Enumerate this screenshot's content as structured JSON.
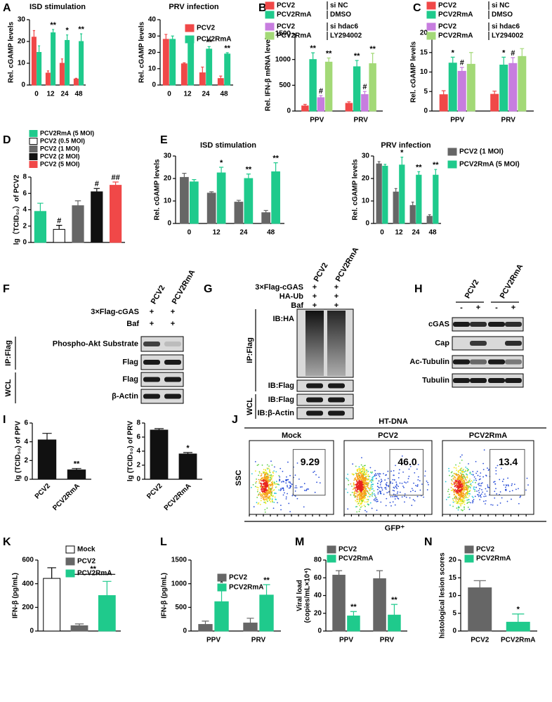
{
  "chart_data": [
    {
      "type": "bar",
      "panel": "A",
      "title": "ISD stimulation",
      "ylabel": "Rel. cGAMP levels",
      "categories": [
        "0",
        "12",
        "24",
        "48"
      ],
      "ylim": [
        0,
        30
      ],
      "yticks": [
        0,
        10,
        20,
        30
      ],
      "series": [
        {
          "color": "#f04848",
          "values": [
            22,
            5.5,
            10,
            2.8
          ],
          "errors": [
            3,
            1,
            2,
            0.3
          ]
        },
        {
          "color": "#1fca8c",
          "values": [
            15,
            24,
            20.5,
            20
          ],
          "errors": [
            3,
            1.5,
            2.5,
            3.5
          ],
          "annotations": [
            null,
            "**",
            "*",
            "**"
          ]
        }
      ]
    },
    {
      "type": "bar",
      "title": "PRV infection",
      "ylabel": "Rel. cGAMP levels",
      "categories": [
        "0",
        "12",
        "24",
        "48"
      ],
      "ylim": [
        0,
        40
      ],
      "yticks": [
        0,
        10,
        20,
        30,
        40
      ],
      "legend": true,
      "series": [
        {
          "name": "PCV2",
          "color": "#f04848",
          "values": [
            28,
            13,
            7.5,
            4
          ],
          "errors": [
            3,
            0.6,
            3.5,
            1.5
          ]
        },
        {
          "name": "PCV2RmA",
          "color": "#1fca8c",
          "values": [
            28,
            28,
            22,
            19
          ],
          "errors": [
            2,
            2,
            1.5,
            0.8
          ],
          "annotations": [
            null,
            "**",
            "**",
            "**"
          ]
        }
      ]
    },
    {
      "type": "bar",
      "panel": "B",
      "ylabel": "Rel. IFN-β mRNA levels",
      "categories": [
        "PPV",
        "PRV"
      ],
      "ylim": [
        0,
        1500
      ],
      "yticks": [
        0,
        500,
        1000,
        1500
      ],
      "legend": true,
      "series": [
        {
          "name": "PCV2",
          "note": "si NC",
          "color": "#f04848",
          "values": [
            100,
            150
          ],
          "errors": [
            30,
            30
          ]
        },
        {
          "name": "PCV2RmA",
          "note": "DMSO",
          "color": "#1fca8c",
          "values": [
            1000,
            860
          ],
          "errors": [
            130,
            120
          ],
          "annotations": [
            "**",
            "**"
          ]
        },
        {
          "name": "PCV2",
          "note": "si hdac6",
          "color": "#c77ddf",
          "values": [
            260,
            320
          ],
          "errors": [
            40,
            60
          ],
          "annotations": [
            "#",
            "#"
          ]
        },
        {
          "name": "PCV2RmA",
          "note": "LY294002",
          "color": "#a3d977",
          "values": [
            950,
            920
          ],
          "errors": [
            80,
            200
          ],
          "annotations": [
            "**",
            "**"
          ]
        }
      ]
    },
    {
      "type": "bar",
      "panel": "C",
      "ylabel": "Rel. cGAMP levels",
      "categories": [
        "PPV",
        "PRV"
      ],
      "ylim": [
        0,
        20
      ],
      "yticks": [
        0,
        5,
        10,
        15,
        20
      ],
      "legend": true,
      "series": [
        {
          "name": "PCV2",
          "note": "si NC",
          "color": "#f04848",
          "values": [
            4.2,
            4.3
          ],
          "errors": [
            1,
            0.8
          ]
        },
        {
          "name": "PCV2RmA",
          "note": "DMSO",
          "color": "#1fca8c",
          "values": [
            12.3,
            11.8
          ],
          "errors": [
            1.5,
            2
          ],
          "annotations": [
            "*",
            "*"
          ]
        },
        {
          "name": "PCV2",
          "note": "si hdac6",
          "color": "#c77ddf",
          "values": [
            10.2,
            12.2
          ],
          "errors": [
            1,
            1.5
          ],
          "annotations": [
            "#",
            "#"
          ]
        },
        {
          "name": "PCV2RmA",
          "note": "LY294002",
          "color": "#a3d977",
          "values": [
            12,
            14
          ],
          "errors": [
            3,
            2
          ]
        }
      ]
    },
    {
      "type": "bar",
      "panel": "D",
      "ylabel": "lg（TCID₅₀）of PCV2",
      "categories": [
        "PCV2RmA (5 MOI)",
        "PCV2 (0.5 MOI)",
        "PCV2 (1 MOI)",
        "PCV2 (2 MOI)",
        "PCV2 (5 MOI)"
      ],
      "xlabels": false,
      "legend": true,
      "values": [
        3.8,
        1.6,
        4.5,
        6.2,
        7.0
      ],
      "errors": [
        1,
        0.5,
        0.6,
        0.4,
        0.4
      ],
      "annotations": [
        null,
        "#",
        null,
        "#",
        "##"
      ],
      "colors": [
        "#1fca8c",
        "#ffffff",
        "#666666",
        "#111111",
        "#f04848"
      ],
      "ylim": [
        0,
        8
      ],
      "yticks": [
        0,
        2,
        4,
        6,
        8
      ]
    },
    {
      "type": "bar",
      "panel": "E",
      "title": "ISD stimulation",
      "ylabel": "Rel. cGAMP levels",
      "categories": [
        "0",
        "12",
        "24",
        "48"
      ],
      "ylim": [
        0,
        30
      ],
      "yticks": [
        0,
        10,
        20,
        30
      ],
      "series": [
        {
          "color": "#666666",
          "values": [
            20.5,
            13.5,
            9.5,
            4.8
          ],
          "errors": [
            1.8,
            0.6,
            0.8,
            1
          ]
        },
        {
          "color": "#1fca8c",
          "values": [
            18.5,
            22.5,
            20,
            23
          ],
          "errors": [
            1,
            2.5,
            2,
            4
          ],
          "annotations": [
            null,
            "*",
            "**",
            "**"
          ]
        }
      ]
    },
    {
      "type": "bar",
      "title": "PRV infection",
      "ylabel": "Rel. cGAMP levels",
      "categories": [
        "0",
        "12",
        "24",
        "48"
      ],
      "ylim": [
        0,
        30
      ],
      "yticks": [
        0,
        10,
        20,
        30
      ],
      "legend": true,
      "series": [
        {
          "name": "PCV2 (1 MOI)",
          "color": "#666666",
          "values": [
            26.5,
            14,
            8,
            3.2
          ],
          "errors": [
            1,
            1.5,
            1.5,
            0.7
          ]
        },
        {
          "name": "PCV2RmA (5 MOI)",
          "color": "#1fca8c",
          "values": [
            25.5,
            26,
            21.5,
            21.5
          ],
          "errors": [
            0.8,
            3.5,
            1.5,
            2.5
          ],
          "annotations": [
            null,
            "*",
            "**",
            "**"
          ]
        }
      ]
    },
    {
      "type": "bar",
      "panel": "I",
      "ylabel": "lg (TCID₅₀) of PPV",
      "categories": [
        "PCV2",
        "PCV2RmA"
      ],
      "xlabel_rotation": 45,
      "values": [
        4.2,
        1.0
      ],
      "errors": [
        0.7,
        0.15
      ],
      "annotations": [
        null,
        "**"
      ],
      "color": "#111111",
      "ylim": [
        0,
        6
      ],
      "yticks": [
        0,
        2,
        4,
        6
      ]
    },
    {
      "type": "bar",
      "ylabel": "lg (TCID₅₀) of PRV",
      "categories": [
        "PCV2",
        "PCV2RmA"
      ],
      "xlabel_rotation": 45,
      "values": [
        7.0,
        3.6
      ],
      "errors": [
        0.2,
        0.2
      ],
      "annotations": [
        null,
        "*"
      ],
      "color": "#111111",
      "ylim": [
        0,
        8
      ],
      "yticks": [
        0,
        2,
        4,
        6,
        8
      ]
    },
    {
      "type": "bar",
      "panel": "K",
      "ylabel": "IFN-β (pg/mL)",
      "categories": [
        "Mock",
        "PCV2",
        "PCV2RmA"
      ],
      "xlabels": false,
      "legend": true,
      "values": [
        445,
        45,
        300
      ],
      "errors": [
        90,
        15,
        120
      ],
      "colors": [
        "#ffffff",
        "#666666",
        "#1fca8c"
      ],
      "ylim": [
        0,
        600
      ],
      "yticks": [
        0,
        200,
        400,
        600
      ],
      "comparisons": [
        {
          "between": [
            "PCV2",
            "PCV2RmA"
          ],
          "label": "**"
        }
      ]
    },
    {
      "type": "bar",
      "panel": "L",
      "ylabel": "IFN-β (pg/mL)",
      "categories": [
        "PPV",
        "PRV"
      ],
      "ylim": [
        0,
        1500
      ],
      "yticks": [
        0,
        500,
        1000,
        1500
      ],
      "legend": true,
      "series": [
        {
          "name": "PCV2",
          "color": "#666666",
          "values": [
            140,
            170
          ],
          "errors": [
            70,
            100
          ]
        },
        {
          "name": "PCV2RmA",
          "color": "#1fca8c",
          "values": [
            620,
            760
          ],
          "errors": [
            300,
            220
          ],
          "annotations": [
            "*",
            "**"
          ]
        }
      ]
    },
    {
      "type": "bar",
      "panel": "M",
      "ylabel": [
        "Viral load",
        "(copies/mL×10⁴)"
      ],
      "categories": [
        "PPV",
        "PRV"
      ],
      "ylim": [
        0,
        80
      ],
      "yticks": [
        0,
        20,
        40,
        60,
        80
      ],
      "legend": true,
      "series": [
        {
          "name": "PCV2",
          "color": "#666666",
          "values": [
            63,
            59
          ],
          "errors": [
            5,
            9
          ]
        },
        {
          "name": "PCV2RmA",
          "color": "#1fca8c",
          "values": [
            17,
            18
          ],
          "errors": [
            5,
            12
          ],
          "annotations": [
            "**",
            "**"
          ]
        }
      ]
    },
    {
      "type": "bar",
      "panel": "N",
      "ylabel": "histological lesion scores",
      "categories": [
        "PCV2",
        "PCV2RmA"
      ],
      "legend": true,
      "values": [
        12.2,
        2.5
      ],
      "errors": [
        2,
        2.3
      ],
      "annotations": [
        null,
        "*"
      ],
      "colors": [
        "#666666",
        "#1fca8c"
      ],
      "ylim": [
        0,
        20
      ],
      "yticks": [
        0,
        5,
        10,
        15,
        20
      ]
    }
  ],
  "blots": [
    {
      "panel": "F",
      "columns": [
        "PCV2",
        "PCV2RmA"
      ],
      "conditions": [
        {
          "label": "3×Flag-cGAS",
          "marks": [
            "+",
            "+"
          ]
        },
        {
          "label": "Baf",
          "marks": [
            "+",
            "+"
          ]
        }
      ],
      "groups": [
        {
          "label": "IP:Flag",
          "rows": [
            "Phospho-Akt Substrate",
            "Flag"
          ]
        },
        {
          "label": "WCL",
          "rows": [
            "Flag",
            "β-Actin"
          ]
        }
      ]
    },
    {
      "panel": "G",
      "columns": [
        "PCV2",
        "PCV2RmA"
      ],
      "conditions": [
        {
          "label": "3×Flag-cGAS",
          "marks": [
            "+",
            "+"
          ]
        },
        {
          "label": "HA-Ub",
          "marks": [
            "+",
            "+"
          ]
        },
        {
          "label": "Baf",
          "marks": [
            "+",
            "+"
          ]
        }
      ],
      "groups": [
        {
          "label": "IP:Flag",
          "rows": [
            "IB:HA",
            "IB:Flag"
          ]
        },
        {
          "label": "WCL",
          "rows": [
            "IB:Flag",
            "IB:β-Actin"
          ]
        }
      ]
    },
    {
      "panel": "H",
      "column_groups": [
        {
          "label": "PCV2",
          "lanes": [
            "-",
            "+"
          ]
        },
        {
          "label": "PCV2RmA",
          "lanes": [
            "-",
            "+"
          ]
        }
      ],
      "rows": [
        "cGAS",
        "Cap",
        "Ac-Tubulin",
        "Tubulin"
      ]
    }
  ],
  "flow": {
    "panel": "J",
    "title": "HT-DNA",
    "ylabel": "SSC",
    "xlabel": "GFP⁺",
    "samples": [
      "Mock",
      "PCV2",
      "PCV2RmA"
    ],
    "gates": [
      9.29,
      46,
      13.4
    ],
    "gate_labels": [
      "9.29",
      "46.0",
      "13.4"
    ]
  }
}
